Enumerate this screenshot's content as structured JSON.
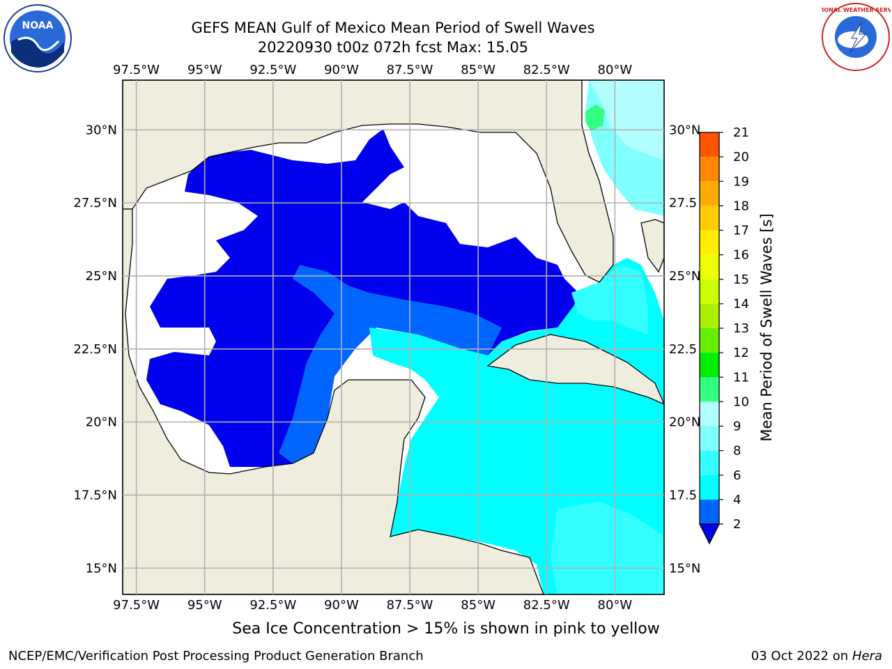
{
  "header": {
    "title_line1": "GEFS MEAN Gulf of Mexico Mean Period of Swell Waves",
    "title_line2": "20220930 t00z 072h fcst   Max: 15.05",
    "noa_logo_text": "NOAA",
    "nws_logo_text": "NATIONAL WEATHER SERVICE"
  },
  "map": {
    "lon_labels": [
      "97.5°W",
      "95°W",
      "92.5°W",
      "90°W",
      "87.5°W",
      "85°W",
      "82.5°W",
      "80°W"
    ],
    "lat_labels_left": [
      "30°N",
      "27.5°N",
      "25°N",
      "22.5°N",
      "20°N",
      "17.5°N",
      "15°N"
    ],
    "lat_labels_right": [
      "30°N",
      "27.5",
      "25°N",
      "22.5",
      "20°N",
      "17.5",
      "15°N"
    ],
    "lon_values": [
      -97.5,
      -95,
      -92.5,
      -90,
      -87.5,
      -85,
      -82.5,
      -80
    ],
    "lat_values": [
      30,
      27.5,
      25,
      22.5,
      20,
      17.5,
      15
    ],
    "extent": {
      "lon_min": -98,
      "lon_max": -78.2,
      "lat_min": 14.1,
      "lat_max": 31.7
    },
    "colors": {
      "land": "#efedde",
      "grid": "#b0b0b0"
    }
  },
  "colorbar": {
    "label": "Mean Period of Swell Waves [s]",
    "ticks": [
      "2",
      "4",
      "6",
      "8",
      "9",
      "10",
      "11",
      "12",
      "13",
      "14",
      "15",
      "16",
      "17",
      "18",
      "19",
      "20",
      "21"
    ],
    "levels": [
      2,
      4,
      6,
      8,
      9,
      10,
      11,
      12,
      13,
      14,
      15,
      16,
      17,
      18,
      19,
      20,
      21
    ],
    "colors": [
      "#0066ff",
      "#00ffff",
      "#33ffff",
      "#80ffff",
      "#b3ffff",
      "#33ff80",
      "#00ee00",
      "#66ee00",
      "#aaee00",
      "#ccff00",
      "#eeff00",
      "#ffee00",
      "#ffcc00",
      "#ffaa00",
      "#ff8800",
      "#ff5500",
      "#ff2200",
      "#ff0000"
    ],
    "under_color": "#0000ee",
    "extend": "min"
  },
  "footer": {
    "sea_ice_note": "Sea Ice Concentration > 15% is shown in pink to yellow",
    "credit": "NCEP/EMC/Verification Post Processing Product Generation Branch",
    "date_prefix": "03 Oct 2022 on ",
    "date_host": "Hera"
  }
}
